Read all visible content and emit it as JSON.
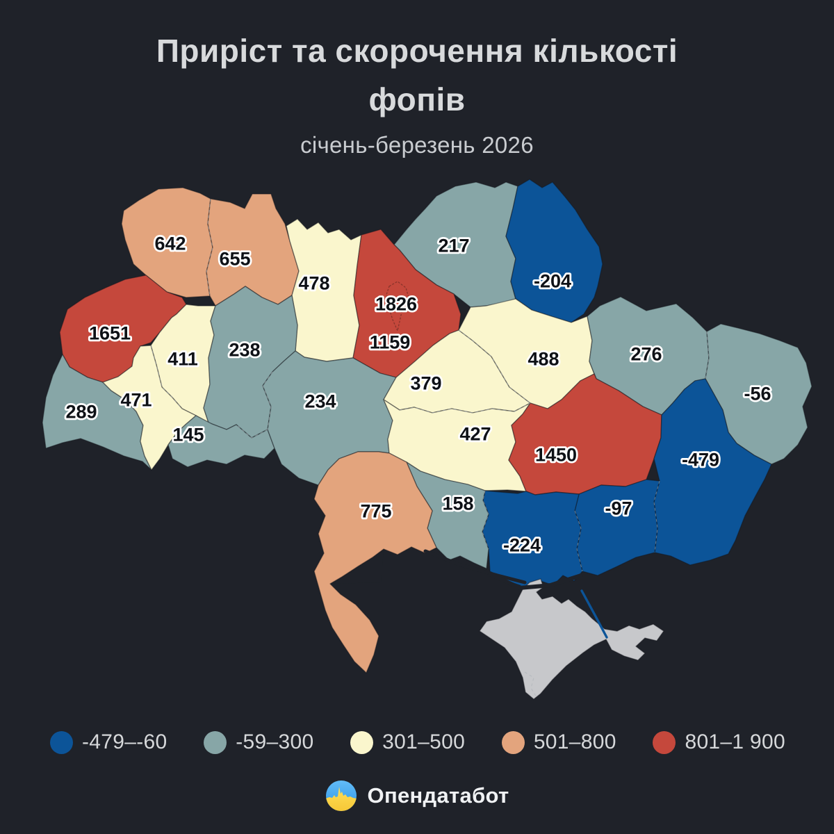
{
  "title": {
    "line1": "Приріст та скорочення кількості",
    "line2": "фопів",
    "subtitle": "січень-березень 2026"
  },
  "legend": {
    "items": [
      {
        "label": "-479–-60",
        "color": "#0c5498"
      },
      {
        "label": "-59–300",
        "color": "#87a6a7"
      },
      {
        "label": "301–500",
        "color": "#faf6cd"
      },
      {
        "label": "501–800",
        "color": "#e3a47d"
      },
      {
        "label": "801–1 900",
        "color": "#c5483c"
      }
    ]
  },
  "footer": {
    "brand": "Опендатабот"
  },
  "chart_data": {
    "type": "choropleth",
    "title": "Приріст та скорочення кількості фопів",
    "subtitle": "січень-березень 2026",
    "legend_bins": [
      {
        "range": "-479–-60",
        "color": "#0c5498"
      },
      {
        "range": "-59–300",
        "color": "#87a6a7"
      },
      {
        "range": "301–500",
        "color": "#faf6cd"
      },
      {
        "range": "501–800",
        "color": "#e3a47d"
      },
      {
        "range": "801–1 900",
        "color": "#c5483c"
      }
    ],
    "no_data_color": "#c7c8cb",
    "regions": [
      {
        "id": "volyn",
        "value": "642",
        "color": "#e3a47d"
      },
      {
        "id": "rivne",
        "value": "655",
        "color": "#e3a47d"
      },
      {
        "id": "zhytomyr",
        "value": "478",
        "color": "#faf6cd"
      },
      {
        "id": "chernihiv",
        "value": "217",
        "color": "#87a6a7"
      },
      {
        "id": "sumy",
        "value": "-204",
        "color": "#0c5498"
      },
      {
        "id": "kyiv-oblast",
        "value": "1159",
        "color": "#c5483c"
      },
      {
        "id": "kyiv-city",
        "value": "1826",
        "color": "#c5483c"
      },
      {
        "id": "lviv",
        "value": "1651",
        "color": "#c5483c"
      },
      {
        "id": "ternopil",
        "value": "411",
        "color": "#faf6cd"
      },
      {
        "id": "khmelnytskyi",
        "value": "238",
        "color": "#87a6a7"
      },
      {
        "id": "zakarpattia",
        "value": "289",
        "color": "#87a6a7"
      },
      {
        "id": "ivano-frankivsk",
        "value": "471",
        "color": "#faf6cd"
      },
      {
        "id": "chernivtsi",
        "value": "145",
        "color": "#87a6a7"
      },
      {
        "id": "vinnytsia",
        "value": "234",
        "color": "#87a6a7"
      },
      {
        "id": "cherkasy",
        "value": "379",
        "color": "#faf6cd"
      },
      {
        "id": "kirovohrad",
        "value": "427",
        "color": "#faf6cd"
      },
      {
        "id": "poltava",
        "value": "488",
        "color": "#faf6cd"
      },
      {
        "id": "kharkiv",
        "value": "276",
        "color": "#87a6a7"
      },
      {
        "id": "luhansk",
        "value": "-56",
        "color": "#87a6a7"
      },
      {
        "id": "dnipro",
        "value": "1450",
        "color": "#c5483c"
      },
      {
        "id": "donetsk",
        "value": "-479",
        "color": "#0c5498"
      },
      {
        "id": "zaporizhzhia",
        "value": "-97",
        "color": "#0c5498"
      },
      {
        "id": "kherson",
        "value": "-224",
        "color": "#0c5498"
      },
      {
        "id": "mykolaiv",
        "value": "158",
        "color": "#87a6a7"
      },
      {
        "id": "odesa",
        "value": "775",
        "color": "#e3a47d"
      },
      {
        "id": "crimea",
        "value": null,
        "color": "#c7c8cb"
      }
    ]
  }
}
